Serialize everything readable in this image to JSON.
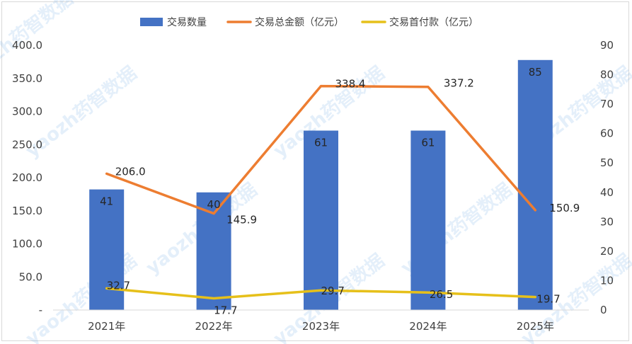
{
  "chart_data": {
    "type": "bar",
    "categories": [
      "2021年",
      "2022年",
      "2023年",
      "2024年",
      "2025年"
    ],
    "series": [
      {
        "name": "交易数量",
        "kind": "bar",
        "axis": "right",
        "color": "#4472c4",
        "values": [
          41,
          40,
          61,
          61,
          85
        ],
        "labels": [
          "41",
          "40",
          "61",
          "61",
          "85"
        ]
      },
      {
        "name": "交易总金额（亿元）",
        "kind": "line",
        "axis": "left",
        "color": "#ed7d31",
        "values": [
          206.0,
          145.9,
          338.4,
          337.2,
          150.9
        ],
        "labels": [
          "206.0",
          "145.9",
          "338.4",
          "337.2",
          "150.9"
        ]
      },
      {
        "name": "交易首付款（亿元）",
        "kind": "line",
        "axis": "left",
        "color": "#e6c01a",
        "values": [
          32.7,
          17.7,
          29.7,
          26.5,
          19.7
        ],
        "labels": [
          "32.7",
          "17.7",
          "29.7",
          "26.5",
          "19.7"
        ]
      }
    ],
    "y_left": {
      "ylim": [
        0,
        400
      ],
      "ticks": [
        "-",
        "50.0",
        "100.0",
        "150.0",
        "200.0",
        "250.0",
        "300.0",
        "350.0",
        "400.0"
      ]
    },
    "y_right": {
      "ylim": [
        0,
        90
      ],
      "ticks": [
        "0",
        "10",
        "20",
        "30",
        "40",
        "50",
        "60",
        "70",
        "80",
        "90"
      ]
    },
    "legend_position": "top",
    "grid": false,
    "watermark": "yaozh药智数据"
  }
}
